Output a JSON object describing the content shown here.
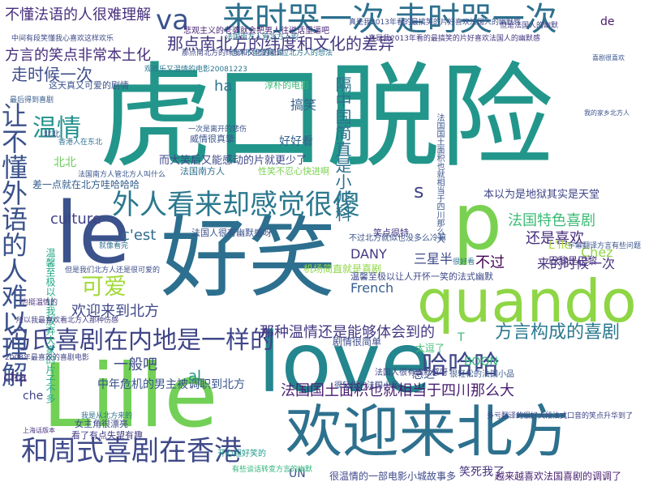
{
  "words": [
    {
      "text": "虎口脱险",
      "color": "#23968b"
    },
    {
      "text": "好笑",
      "color": "#2d6f8e"
    },
    {
      "text": "love",
      "color": "#24868e"
    },
    {
      "text": "Lille",
      "color": "#73d056"
    },
    {
      "text": "quando",
      "color": "#8ed645"
    },
    {
      "text": "欢迎来北方",
      "color": "#2d718e"
    },
    {
      "text": "le",
      "color": "#3b528b"
    },
    {
      "text": "p",
      "color": "#7ad151"
    },
    {
      "text": "来时哭一次 走时哭一次",
      "color": "#2d708e"
    },
    {
      "text": "外人看来却感觉很傻",
      "color": "#2a788e"
    },
    {
      "text": "和周式喜剧在香港",
      "color": "#3e4989"
    },
    {
      "text": "冯氏喜剧在内地是一样的",
      "color": "#404688"
    },
    {
      "text": "让不懂外语的人难以理解",
      "color": "#3b528b"
    },
    {
      "text": "温情",
      "color": "#21918c"
    },
    {
      "text": "哈哈哈",
      "color": "#3f4788"
    },
    {
      "text": "va",
      "color": "#3b528b"
    },
    {
      "text": "隔中国简直是小儿科",
      "color": "#2c728e"
    },
    {
      "text": "方言构成的喜剧",
      "color": "#2a788e"
    },
    {
      "text": "可爱",
      "color": "#a2da37"
    },
    {
      "text": "不懂法语的人很难理解",
      "color": "#472f7d"
    },
    {
      "text": "方言的笑点非常本土化",
      "color": "#472d7b"
    },
    {
      "text": "走时候一次",
      "color": "#3d4e8a"
    },
    {
      "text": "那点南北方的纬度和文化的差异",
      "color": "#453781"
    },
    {
      "text": "欢迎来到北方",
      "color": "#3f4889"
    },
    {
      "text": "s",
      "color": "#404588"
    },
    {
      "text": "culture",
      "color": "#414287"
    },
    {
      "text": "法国特色喜剧",
      "color": "#3bbb75"
    },
    {
      "text": "还是喜欢",
      "color": "#472e7c"
    },
    {
      "text": "来的时候一次",
      "color": "#46307e"
    },
    {
      "text": "那种温情还是能够体会到的",
      "color": "#443983"
    },
    {
      "text": "法国国土面积也就相当于四川那么大",
      "color": "#481d6f"
    },
    {
      "text": "一般吧",
      "color": "#3e4a89"
    },
    {
      "text": "中年危机的男主被调职到北方",
      "color": "#3a548c"
    },
    {
      "text": "本以为是地狱其实是天堂",
      "color": "#404588"
    },
    {
      "text": "c'est",
      "color": "#2f6c8e"
    },
    {
      "text": "三星半",
      "color": "#3e4a89"
    },
    {
      "text": "不过",
      "color": "#440154"
    },
    {
      "text": "French",
      "color": "#355e8d"
    },
    {
      "text": "DANY",
      "color": "#453882"
    },
    {
      "text": "BOON",
      "color": "#2fb47c"
    },
    {
      "text": "Chez",
      "color": "#8ed645"
    },
    {
      "text": "L'ile",
      "color": "#a8db34"
    },
    {
      "text": "搞笑",
      "color": "#355f8d"
    },
    {
      "text": "好好看",
      "color": "#33638d"
    },
    {
      "text": "而大笑后又能感动的片就更少了",
      "color": "#3e4989"
    },
    {
      "text": "北北",
      "color": "#6ccd5a"
    },
    {
      "text": "差一点就在北方哇哈哈哈",
      "color": "#355f8d"
    },
    {
      "text": "很温情的一部电影小城故事多",
      "color": "#3e4989"
    },
    {
      "text": "笑死我了",
      "color": "#46337f"
    },
    {
      "text": "越来越喜欢法国喜剧的调调了",
      "color": "#481f70"
    },
    {
      "text": "总之",
      "color": "#3c508b"
    },
    {
      "text": "ha",
      "color": "#2c738e"
    },
    {
      "text": "al",
      "color": "#20928c"
    },
    {
      "text": "cha",
      "color": "#46327e"
    },
    {
      "text": "UN",
      "color": "#3b528b"
    },
    {
      "text": "de",
      "color": "#481b6d"
    },
    {
      "text": "T",
      "color": "#3aba76"
    },
    {
      "text": "淳朴的电影",
      "color": "#3aba76"
    },
    {
      "text": "法国人很有幽默感呀",
      "color": "#3b528b"
    },
    {
      "text": "巴黎是巴黎",
      "color": "#46317e"
    },
    {
      "text": "笑点很特",
      "color": "#443983"
    },
    {
      "text": "法国南方人",
      "color": "#2e6f8e"
    },
    {
      "text": "悲观主义的老婆就会把男人往说话里逼吧",
      "color": "#482576"
    },
    {
      "text": "真是我2013年看的最搞笑的片好喜欢法国人的幽默感",
      "color": "#453781"
    },
    {
      "text": "北北",
      "color": "#3a548c"
    },
    {
      "text": "che",
      "color": "#414487"
    },
    {
      "text": "温馨至极以让我放弃大家的片子不多",
      "color": "#22a785"
    },
    {
      "text": "法国南方人管北方人的",
      "color": "#2c738e"
    },
    {
      "text": "也许不能理解出位北方人的想法",
      "color": "#2a778e"
    },
    {
      "text": "威情很真挚",
      "color": "#3a548c"
    },
    {
      "text": "开心超好笑的",
      "color": "#1f988b"
    },
    {
      "text": "剧情很简单",
      "color": "#3e4a89"
    },
    {
      "text": "法国人很有幽默感呀",
      "color": "#414487"
    },
    {
      "text": "机场简直就是喜剧",
      "color": "#8ed645"
    },
    {
      "text": "温馨至极以让人开怀一笑的法式幽默",
      "color": "#3e4989"
    },
    {
      "text": "不过北方就似也没多么冷嘛",
      "color": "#3b528b"
    },
    {
      "text": "很轻松的法国小品",
      "color": "#3c4f8a"
    },
    {
      "text": "女主角很漂亮",
      "color": "#3e4989"
    },
    {
      "text": "看了有点失望有趣",
      "color": "#433d84"
    },
    {
      "text": "法国国土面积也就相当于四川那么大",
      "color": "#3a548c"
    },
    {
      "text": "很轻松的法国小品",
      "color": "#39568c"
    },
    {
      "text": "太逗了",
      "color": "#3dbc74"
    },
    {
      "text": "这天真又可爱的剧情",
      "color": "#3b528b"
    },
    {
      "text": "真是我2013年看的最搞笑的片好喜欢法国人的幽默感",
      "color": "#3e4c8a"
    },
    {
      "text": "性笑不忍心快进啊",
      "color": "#7ad151"
    },
    {
      "text": "观欢乐又温情的电影20081223",
      "color": "#2a768e"
    },
    {
      "text": "法国南方人管北方人叫什么",
      "color": "#3a548c"
    },
    {
      "text": "我是从北方来的",
      "color": "#2d708e"
    },
    {
      "text": "有些谈话转变方言的幽默",
      "color": "#2fb47c"
    },
    {
      "text": "中间有段笑懂我心喜欢这样欢乐",
      "color": "#3e4989"
    },
    {
      "text": "最后得到喜剧",
      "color": "#365c8d"
    },
    {
      "text": "那点南北方的纬度和文化的差异",
      "color": "#404688"
    },
    {
      "text": "很好看",
      "color": "#2c728e"
    },
    {
      "text": "香港人在东北",
      "color": "#2d708e"
    },
    {
      "text": "喜剧很喜欢",
      "color": "#3a548c"
    },
    {
      "text": "所以我最喜欢看北方人那种伤感",
      "color": "#433e85"
    },
    {
      "text": "多亏翻译的很好大段法式口音的笑点升华到了",
      "color": "#404688"
    },
    {
      "text": "2008年最喜欢的喜剧电影",
      "color": "#414487"
    },
    {
      "text": "但是我们北方人还是很可爱的",
      "color": "#3d4e8a"
    },
    {
      "text": "就像看完",
      "color": "#2e6e8e"
    },
    {
      "text": "宇幕翻译方言有些问题",
      "color": "#3a548c"
    },
    {
      "text": "但是法国人的幽默",
      "color": "#433e85"
    },
    {
      "text": "一次是离开的悲伤",
      "color": "#3a548c"
    },
    {
      "text": "上海话版本",
      "color": "#46337f"
    },
    {
      "text": "我的家乡北方人",
      "color": "#3b528b"
    },
    {
      "text": "也挺温情的",
      "color": "#472e7c"
    }
  ]
}
